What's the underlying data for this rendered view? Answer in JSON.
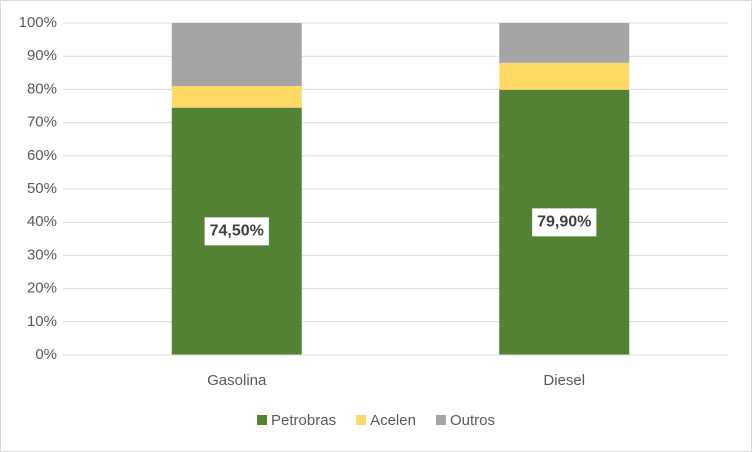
{
  "chart_data": {
    "type": "stacked_bar",
    "categories": [
      "Gasolina",
      "Diesel"
    ],
    "series": [
      {
        "name": "Petrobras",
        "color": "#548235",
        "values": [
          74.5,
          79.9
        ],
        "value_labels": [
          "74,50%",
          "79,90%"
        ]
      },
      {
        "name": "Acelen",
        "color": "#ffd966",
        "values": [
          6.5,
          8.1
        ]
      },
      {
        "name": "Outros",
        "color": "#a5a5a5",
        "values": [
          19,
          12
        ]
      }
    ],
    "ylim": [
      0,
      100
    ],
    "yticks": [
      {
        "value": 0,
        "label": "0%"
      },
      {
        "value": 10,
        "label": "10%"
      },
      {
        "value": 20,
        "label": "20%"
      },
      {
        "value": 30,
        "label": "30%"
      },
      {
        "value": 40,
        "label": "40%"
      },
      {
        "value": 50,
        "label": "50%"
      },
      {
        "value": 60,
        "label": "60%"
      },
      {
        "value": 70,
        "label": "70%"
      },
      {
        "value": 80,
        "label": "80%"
      },
      {
        "value": 90,
        "label": "90%"
      },
      {
        "value": 100,
        "label": "100%"
      }
    ],
    "grid": true,
    "legend": "bottom"
  }
}
